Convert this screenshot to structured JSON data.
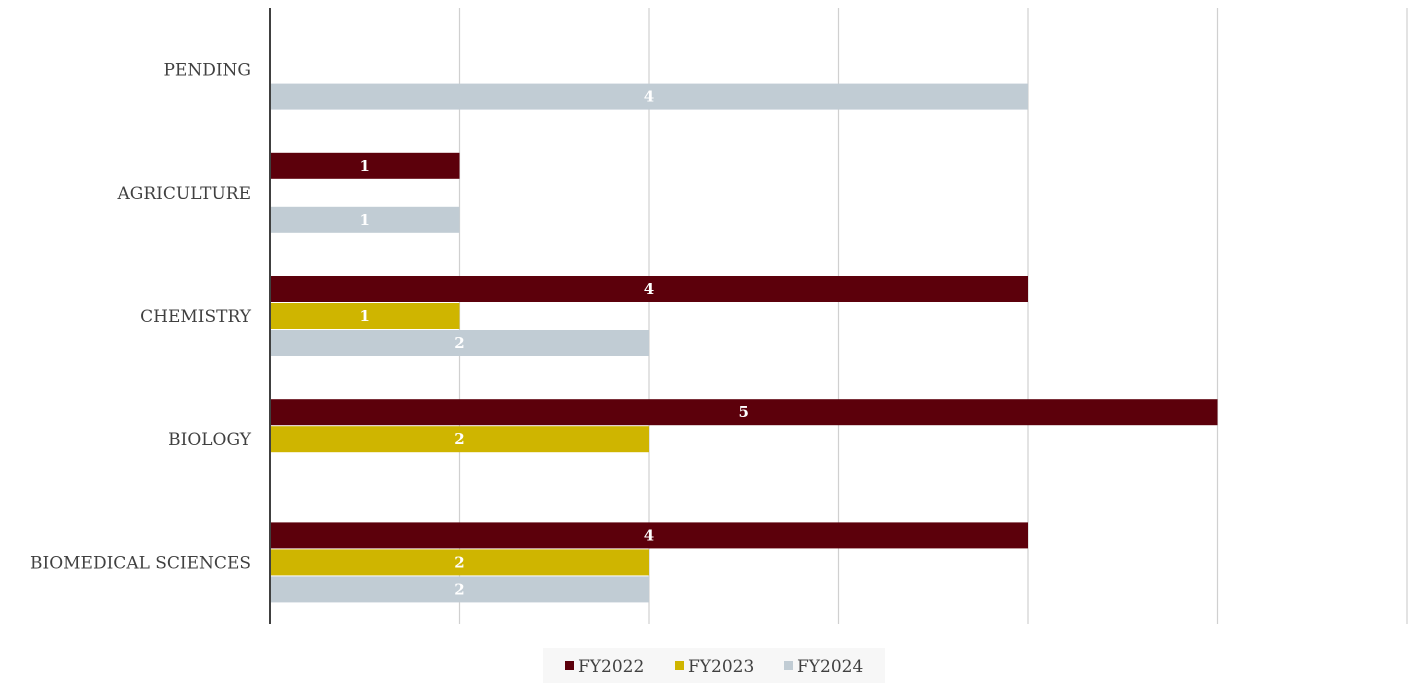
{
  "chart_data": {
    "type": "bar",
    "orientation": "horizontal",
    "categories": [
      "BIOMEDICAL SCIENCES",
      "BIOLOGY",
      "CHEMISTRY",
      "AGRICULTURE",
      "PENDING"
    ],
    "series": [
      {
        "name": "FY2022",
        "color": "#5c000b",
        "values": [
          4,
          5,
          4,
          1,
          null
        ]
      },
      {
        "name": "FY2023",
        "color": "#cfb500",
        "values": [
          2,
          2,
          1,
          null,
          null
        ]
      },
      {
        "name": "FY2024",
        "color": "#c1ccd4",
        "values": [
          2,
          null,
          2,
          1,
          4
        ]
      }
    ],
    "title": "",
    "xlabel": "",
    "ylabel": "",
    "xlim": [
      0,
      6
    ],
    "grid": true,
    "data_labels": true,
    "legend_position": "bottom"
  }
}
